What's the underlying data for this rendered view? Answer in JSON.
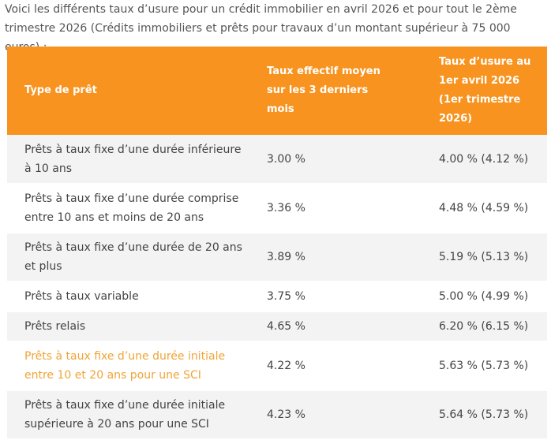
{
  "intro_text": "Voici les différents taux d’usure pour un crédit immobilier en avril 2026 et pour tout le 2ème trimestre 2026 (Crédits immobiliers et prêts pour travaux d’un montant supérieur à 75 000 euros) :",
  "colors": {
    "header_bg": "#f7931e",
    "row_alt_bg": "#f3f3f3",
    "link": "#f0a436"
  },
  "table": {
    "headers": [
      "Type de prêt",
      "Taux effectif moyen sur les 3 derniers mois",
      "Taux d’usure au 1er avril 2026 (1er trimestre 2026)"
    ],
    "rows": [
      {
        "type": "Prêts à taux fixe d’une durée inférieure à 10 ans",
        "teg_moyen": "3.00 %",
        "taux_usure": "4.00 % (4.12 %)",
        "is_link": false
      },
      {
        "type": "Prêts à taux fixe d’une durée comprise entre 10 ans et moins de 20 ans",
        "teg_moyen": "3.36 %",
        "taux_usure": "4.48 % (4.59 %)",
        "is_link": false
      },
      {
        "type": "Prêts à taux fixe d’une durée de 20 ans et plus",
        "teg_moyen": "3.89 %",
        "taux_usure": "5.19 % (5.13 %)",
        "is_link": false
      },
      {
        "type": "Prêts à taux variable",
        "teg_moyen": "3.75 %",
        "taux_usure": "5.00 % (4.99 %)",
        "is_link": false
      },
      {
        "type": "Prêts relais",
        "teg_moyen": "4.65 %",
        "taux_usure": "6.20 % (6.15 %)",
        "is_link": false
      },
      {
        "type": "Prêts à taux fixe d’une durée initiale entre 10 et 20 ans pour une SCI",
        "teg_moyen": "4.22 %",
        "taux_usure": "5.63 % (5.73 %)",
        "is_link": true
      },
      {
        "type": "Prêts à taux fixe d’une durée initiale supérieure à 20 ans pour une SCI",
        "teg_moyen": "4.23 %",
        "taux_usure": "5.64 % (5.73 %)",
        "is_link": false
      }
    ]
  }
}
